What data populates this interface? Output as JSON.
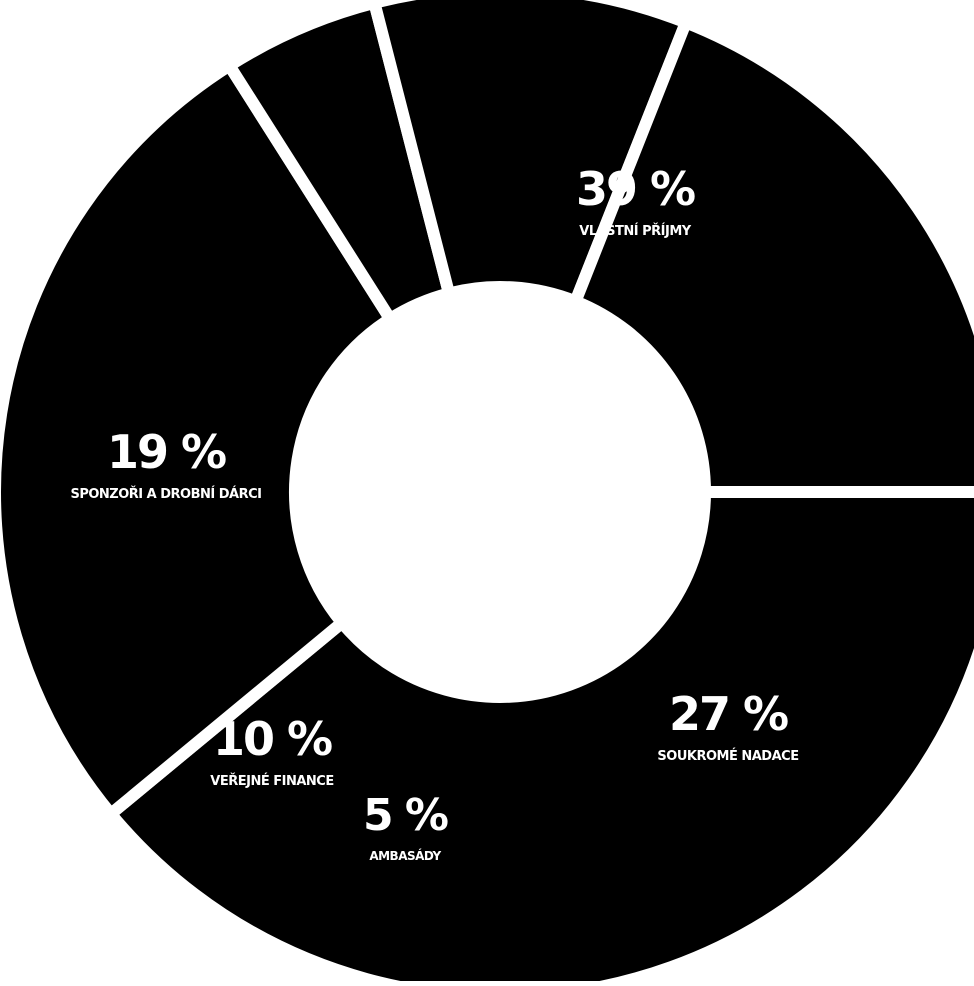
{
  "chart_data": {
    "type": "pie",
    "title": "",
    "donut": true,
    "colors": {
      "slice": "#000000",
      "separator": "#ffffff",
      "text": "#ffffff"
    },
    "slices": [
      {
        "label": "VLASTNÍ PŘÍJMY",
        "value": 39,
        "value_label": "39 %"
      },
      {
        "label": "SOUKROMÉ NADACE",
        "value": 27,
        "value_label": "27 %"
      },
      {
        "label": "AMBASÁDY",
        "value": 5,
        "value_label": "5 %"
      },
      {
        "label": "VEŘEJNÉ FINANCE",
        "value": 10,
        "value_label": "10 %"
      },
      {
        "label": "SPONZOŘI A DROBNÍ DÁRCI",
        "value": 19,
        "value_label": "19 %"
      }
    ]
  }
}
